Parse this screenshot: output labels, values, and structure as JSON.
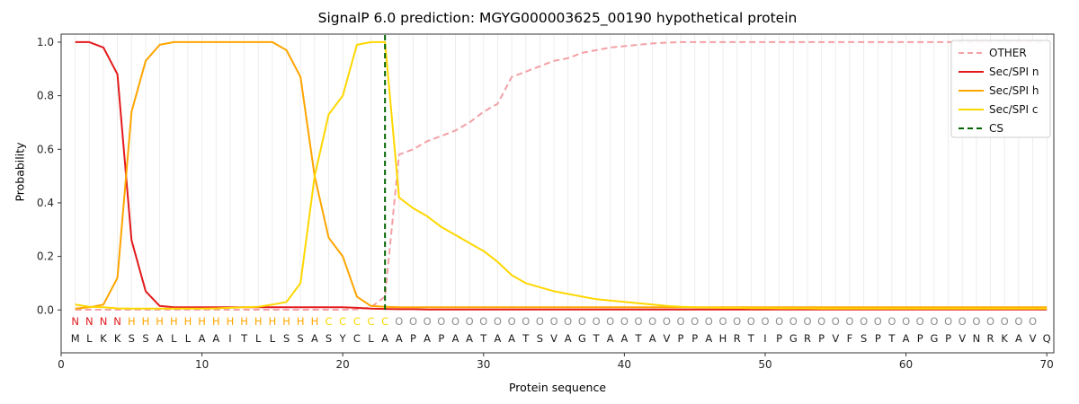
{
  "legend": [
    {
      "label": "OTHER",
      "color": "#f3a0a6",
      "dash": true
    },
    {
      "label": "Sec/SPI n",
      "color": "#e31a1c",
      "dash": false
    },
    {
      "label": "Sec/SPI h",
      "color": "#ffa500",
      "dash": false
    },
    {
      "label": "Sec/SPI c",
      "color": "#ffd700",
      "dash": false
    },
    {
      "label": "CS",
      "color": "#006400",
      "dash": true
    }
  ],
  "chart_data": {
    "type": "line",
    "title": "SignalP 6.0 prediction: MGYG000003625_00190 hypothetical protein",
    "xlabel": "Protein sequence",
    "ylabel": "Probability",
    "xlim": [
      0,
      70.5
    ],
    "ylim": [
      -0.16,
      1.03
    ],
    "xticks": [
      0,
      10,
      20,
      30,
      40,
      50,
      60,
      70
    ],
    "yticks": [
      0.0,
      0.2,
      0.4,
      0.6,
      0.8,
      1.0
    ],
    "grid": true,
    "legend_position": "upper right",
    "cs_position": 23,
    "cs_color": "#006400",
    "sequence": "MLKKSSALLAAITLLSSASYCLAAPAPAATAATSVAGTAATAVPPAHRTIPGRPVFSPTAPGPVNRKAVQ",
    "region_labels": "NNNNHHHHHHHHHHHHHHCCCCCOOOOOOOOOOOOOOOOOOOOOOOOOOOOOOOOOOOOOOOOOOOOOO",
    "region_colors": {
      "N": "#e31a1c",
      "H": "#ffa500",
      "C": "#ffd700",
      "O": "#8f8f8f"
    },
    "x": [
      1,
      2,
      3,
      4,
      5,
      6,
      7,
      8,
      9,
      10,
      11,
      12,
      13,
      14,
      15,
      16,
      17,
      18,
      19,
      20,
      21,
      22,
      23,
      24,
      25,
      26,
      27,
      28,
      29,
      30,
      31,
      32,
      33,
      34,
      35,
      36,
      37,
      38,
      39,
      40,
      41,
      42,
      43,
      44,
      45,
      46,
      47,
      48,
      49,
      50,
      51,
      52,
      53,
      54,
      55,
      56,
      57,
      58,
      59,
      60,
      61,
      62,
      63,
      64,
      65,
      66,
      67,
      68,
      69,
      70
    ],
    "series": [
      {
        "id": "other",
        "name": "OTHER",
        "color": "#f3a0a6",
        "dash": true,
        "values": [
          0.001,
          0.001,
          0.001,
          0.001,
          0.001,
          0.001,
          0.001,
          0.001,
          0.001,
          0.001,
          0.001,
          0.001,
          0.001,
          0.001,
          0.001,
          0.001,
          0.001,
          0.001,
          0.001,
          0.001,
          0.002,
          0.01,
          0.05,
          0.58,
          0.6,
          0.63,
          0.65,
          0.67,
          0.7,
          0.74,
          0.77,
          0.87,
          0.89,
          0.91,
          0.93,
          0.94,
          0.96,
          0.97,
          0.98,
          0.985,
          0.99,
          0.995,
          0.998,
          1.0,
          1.0,
          1.0,
          1.0,
          1.0,
          1.0,
          1.0,
          1.0,
          1.0,
          1.0,
          1.0,
          1.0,
          1.0,
          1.0,
          1.0,
          1.0,
          1.0,
          1.0,
          1.0,
          1.0,
          1.0,
          1.0,
          1.0,
          1.0,
          1.0,
          1.0,
          1.0
        ]
      },
      {
        "id": "n",
        "name": "Sec/SPI n",
        "color": "#e31a1c",
        "dash": false,
        "values": [
          1.0,
          1.0,
          0.98,
          0.88,
          0.26,
          0.07,
          0.015,
          0.01,
          0.01,
          0.01,
          0.01,
          0.01,
          0.01,
          0.01,
          0.01,
          0.01,
          0.01,
          0.01,
          0.01,
          0.01,
          0.008,
          0.005,
          0.004,
          0.003,
          0.003,
          0.002,
          0.002,
          0.002,
          0.002,
          0.002,
          0.002,
          0.002,
          0.002,
          0.002,
          0.002,
          0.002,
          0.002,
          0.002,
          0.002,
          0.002,
          0.002,
          0.002,
          0.002,
          0.002,
          0.002,
          0.002,
          0.002,
          0.002,
          0.002,
          0.002,
          0.002,
          0.002,
          0.002,
          0.002,
          0.002,
          0.002,
          0.002,
          0.002,
          0.002,
          0.002,
          0.002,
          0.002,
          0.002,
          0.002,
          0.002,
          0.002,
          0.002,
          0.002,
          0.002,
          0.002
        ]
      },
      {
        "id": "h",
        "name": "Sec/SPI h",
        "color": "#ffa500",
        "dash": false,
        "values": [
          0.005,
          0.01,
          0.02,
          0.12,
          0.74,
          0.93,
          0.99,
          1.0,
          1.0,
          1.0,
          1.0,
          1.0,
          1.0,
          1.0,
          1.0,
          0.97,
          0.87,
          0.5,
          0.27,
          0.2,
          0.05,
          0.015,
          0.012,
          0.01,
          0.01,
          0.01,
          0.01,
          0.01,
          0.01,
          0.01,
          0.01,
          0.01,
          0.01,
          0.01,
          0.01,
          0.01,
          0.01,
          0.01,
          0.01,
          0.01,
          0.01,
          0.01,
          0.01,
          0.01,
          0.01,
          0.01,
          0.01,
          0.01,
          0.01,
          0.01,
          0.01,
          0.01,
          0.01,
          0.01,
          0.01,
          0.01,
          0.01,
          0.01,
          0.01,
          0.01,
          0.01,
          0.01,
          0.01,
          0.01,
          0.01,
          0.01,
          0.01,
          0.01,
          0.01,
          0.01
        ]
      },
      {
        "id": "c",
        "name": "Sec/SPI c",
        "color": "#ffd700",
        "dash": false,
        "values": [
          0.02,
          0.012,
          0.01,
          0.006,
          0.005,
          0.005,
          0.005,
          0.005,
          0.005,
          0.005,
          0.006,
          0.008,
          0.01,
          0.012,
          0.02,
          0.03,
          0.1,
          0.5,
          0.73,
          0.8,
          0.99,
          1.0,
          1.0,
          0.42,
          0.38,
          0.35,
          0.31,
          0.28,
          0.25,
          0.22,
          0.18,
          0.13,
          0.1,
          0.085,
          0.07,
          0.06,
          0.05,
          0.04,
          0.035,
          0.03,
          0.025,
          0.02,
          0.015,
          0.012,
          0.01,
          0.009,
          0.008,
          0.008,
          0.007,
          0.007,
          0.006,
          0.006,
          0.006,
          0.005,
          0.005,
          0.005,
          0.005,
          0.005,
          0.005,
          0.005,
          0.005,
          0.005,
          0.005,
          0.005,
          0.005,
          0.005,
          0.005,
          0.005,
          0.005,
          0.005
        ]
      }
    ]
  }
}
